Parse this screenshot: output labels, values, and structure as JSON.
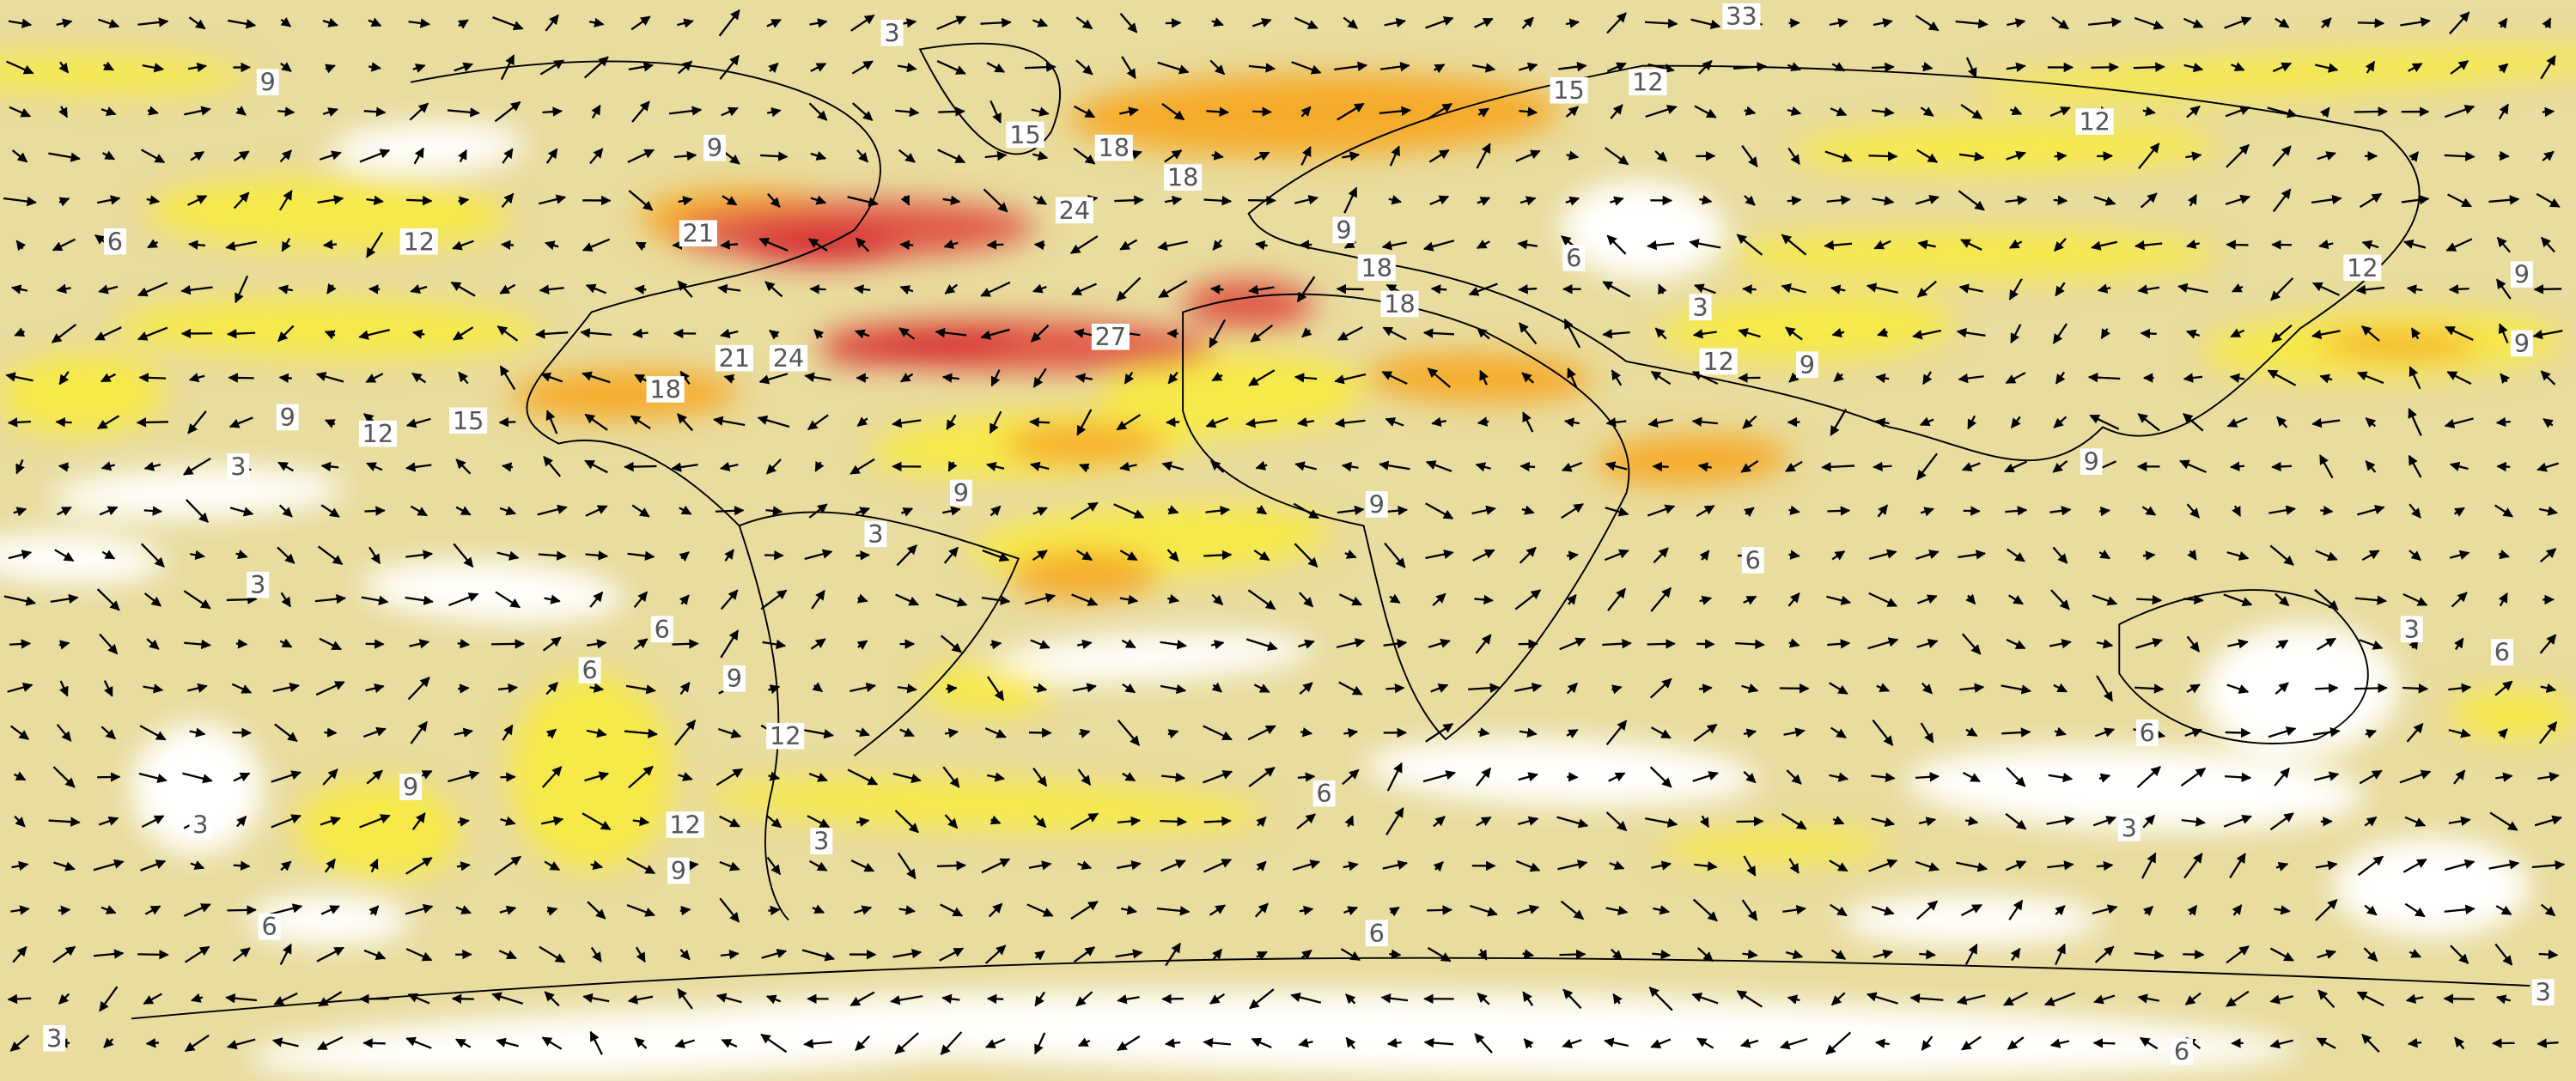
{
  "contour_labels": [
    3,
    33,
    9,
    15,
    12,
    15,
    18,
    12,
    9,
    18,
    24,
    21,
    6,
    12,
    9,
    6,
    12,
    9,
    18,
    18,
    3,
    27,
    21,
    24,
    18,
    12,
    9,
    9,
    9,
    12,
    15,
    3,
    9,
    9,
    9,
    3,
    6,
    3,
    6,
    3,
    6,
    9,
    6,
    12,
    6,
    9,
    6,
    3,
    12,
    3,
    3,
    9,
    6,
    6,
    3,
    3,
    6
  ]
}
